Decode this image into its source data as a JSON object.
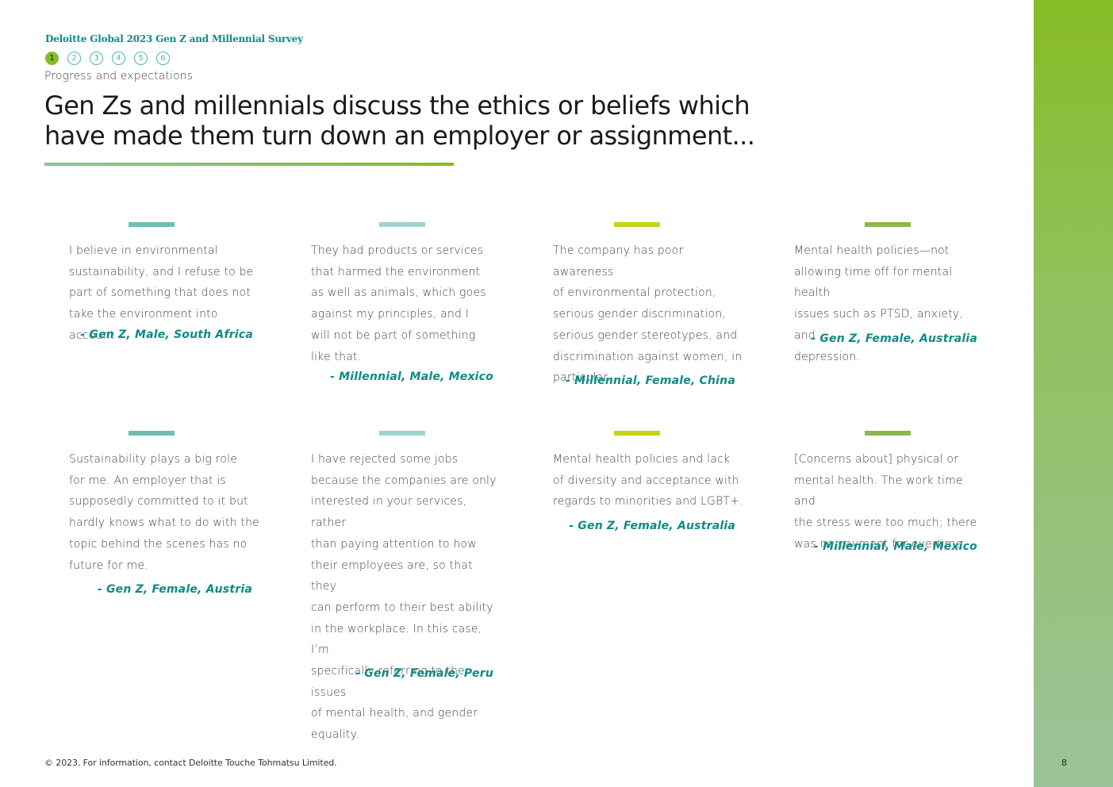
{
  "header": {
    "survey_title": "Deloitte Global 2023 Gen Z and Millennial Survey",
    "section_label": "Progress and expectations",
    "nav": [
      "1",
      "2",
      "3",
      "4",
      "5",
      "6"
    ],
    "active_nav": "1"
  },
  "headline": "Gen Zs and millennials discuss the ethics or beliefs which have made them turn down an employer or assignment...",
  "colors": {
    "teal": "#0f8a86",
    "green": "#86bc25",
    "bar1": "#6dc0b0",
    "bar2": "#9dd3cc",
    "bar3": "#c5d318",
    "bar4": "#8ab94e"
  },
  "quotes": [
    {
      "lines": [
        "I believe in environmental",
        "sustainability, and I refuse to be",
        "part of something that does not",
        "take the environment into account"
      ],
      "attribution": "- Gen Z, Male, South Africa"
    },
    {
      "lines": [
        "They had products or services",
        "that harmed the environment",
        "as well as animals, which goes",
        "against my principles, and I",
        "will not be part of something",
        "like that."
      ],
      "attribution": "- Millennial, Male, Mexico"
    },
    {
      "lines": [
        "The company has poor awareness",
        "of environmental protection,",
        "serious gender discrimination,",
        "serious gender stereotypes, and",
        "discrimination against women, in",
        "particular."
      ],
      "attribution": "- Millennial, Female, China"
    },
    {
      "lines": [
        "Mental health policies—not",
        "allowing time off for mental health",
        "issues such as PTSD, anxiety, and",
        "depression."
      ],
      "attribution": "- Gen Z, Female, Australia"
    },
    {
      "lines": [
        "Sustainability plays a big role",
        "for me. An employer that is",
        "supposedly committed to it but",
        "hardly knows what to do with the",
        "topic behind the scenes has no",
        "future for me."
      ],
      "attribution": "- Gen Z, Female, Austria"
    },
    {
      "lines": [
        "I have rejected some jobs",
        "because the companies are only",
        "interested in your services, rather",
        "than paying attention to how",
        "their employees are, so that they",
        "can perform to their best ability",
        "in the workplace. In this case, I’m",
        "specifically referring to the issues",
        "of mental health, and gender",
        "equality."
      ],
      "attribution": "- Gen Z, Female, Peru"
    },
    {
      "lines": [
        "Mental health policies and lack",
        "of diversity and acceptance with",
        "regards to minorities and LGBT+."
      ],
      "attribution": "- Gen Z, Female, Australia"
    },
    {
      "lines": [
        "[Concerns about] physical or",
        "mental health. The work time and",
        "the stress were too much; there",
        "was no payment for overtime."
      ],
      "attribution": "- Millennial, Male, Mexico"
    }
  ],
  "footer": {
    "copyright": "© 2023. For information, contact Deloitte Touche Tohmatsu Limited.",
    "page_number": "8"
  }
}
